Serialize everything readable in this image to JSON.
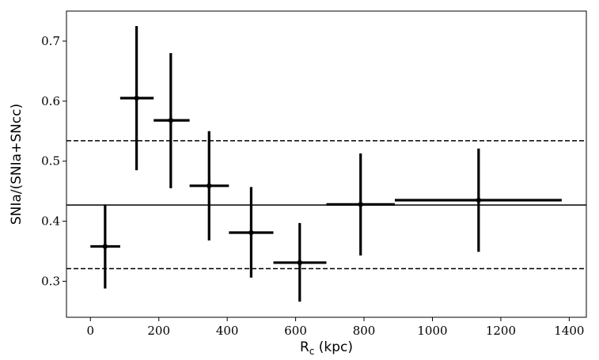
{
  "chart_data": {
    "type": "scatter",
    "title": "",
    "xlabel": "R",
    "xlabel_sub": "c",
    "xlabel_unit": " (kpc)",
    "ylabel": "SNIa/(SNIa+SNcc)",
    "xlim": [
      -70,
      1450
    ],
    "ylim": [
      0.24,
      0.75
    ],
    "x_ticks": [
      0,
      200,
      400,
      600,
      800,
      1000,
      1200,
      1400
    ],
    "y_ticks": [
      0.3,
      0.4,
      0.5,
      0.6,
      0.7
    ],
    "y_tick_labels": [
      "0.3",
      "0.4",
      "0.5",
      "0.6",
      "0.7"
    ],
    "grid": false,
    "points": [
      {
        "x": 43,
        "xlo": 0,
        "xhi": 87,
        "y": 0.358,
        "ylo": 0.288,
        "yhi": 0.428
      },
      {
        "x": 135,
        "xlo": 87,
        "xhi": 185,
        "y": 0.605,
        "ylo": 0.485,
        "yhi": 0.725
      },
      {
        "x": 235,
        "xlo": 185,
        "xhi": 290,
        "y": 0.568,
        "ylo": 0.455,
        "yhi": 0.68
      },
      {
        "x": 347,
        "xlo": 290,
        "xhi": 405,
        "y": 0.459,
        "ylo": 0.368,
        "yhi": 0.55
      },
      {
        "x": 470,
        "xlo": 405,
        "xhi": 535,
        "y": 0.381,
        "ylo": 0.306,
        "yhi": 0.457
      },
      {
        "x": 612,
        "xlo": 535,
        "xhi": 690,
        "y": 0.331,
        "ylo": 0.266,
        "yhi": 0.397
      },
      {
        "x": 790,
        "xlo": 690,
        "xhi": 890,
        "y": 0.428,
        "ylo": 0.343,
        "yhi": 0.513
      },
      {
        "x": 1135,
        "xlo": 890,
        "xhi": 1378,
        "y": 0.435,
        "ylo": 0.349,
        "yhi": 0.521
      }
    ],
    "reference_lines": [
      {
        "y": 0.427,
        "style": "solid"
      },
      {
        "y": 0.534,
        "style": "dashed"
      },
      {
        "y": 0.321,
        "style": "dashed"
      }
    ]
  },
  "colors": {
    "marker": "#000000",
    "line": "#000000"
  }
}
